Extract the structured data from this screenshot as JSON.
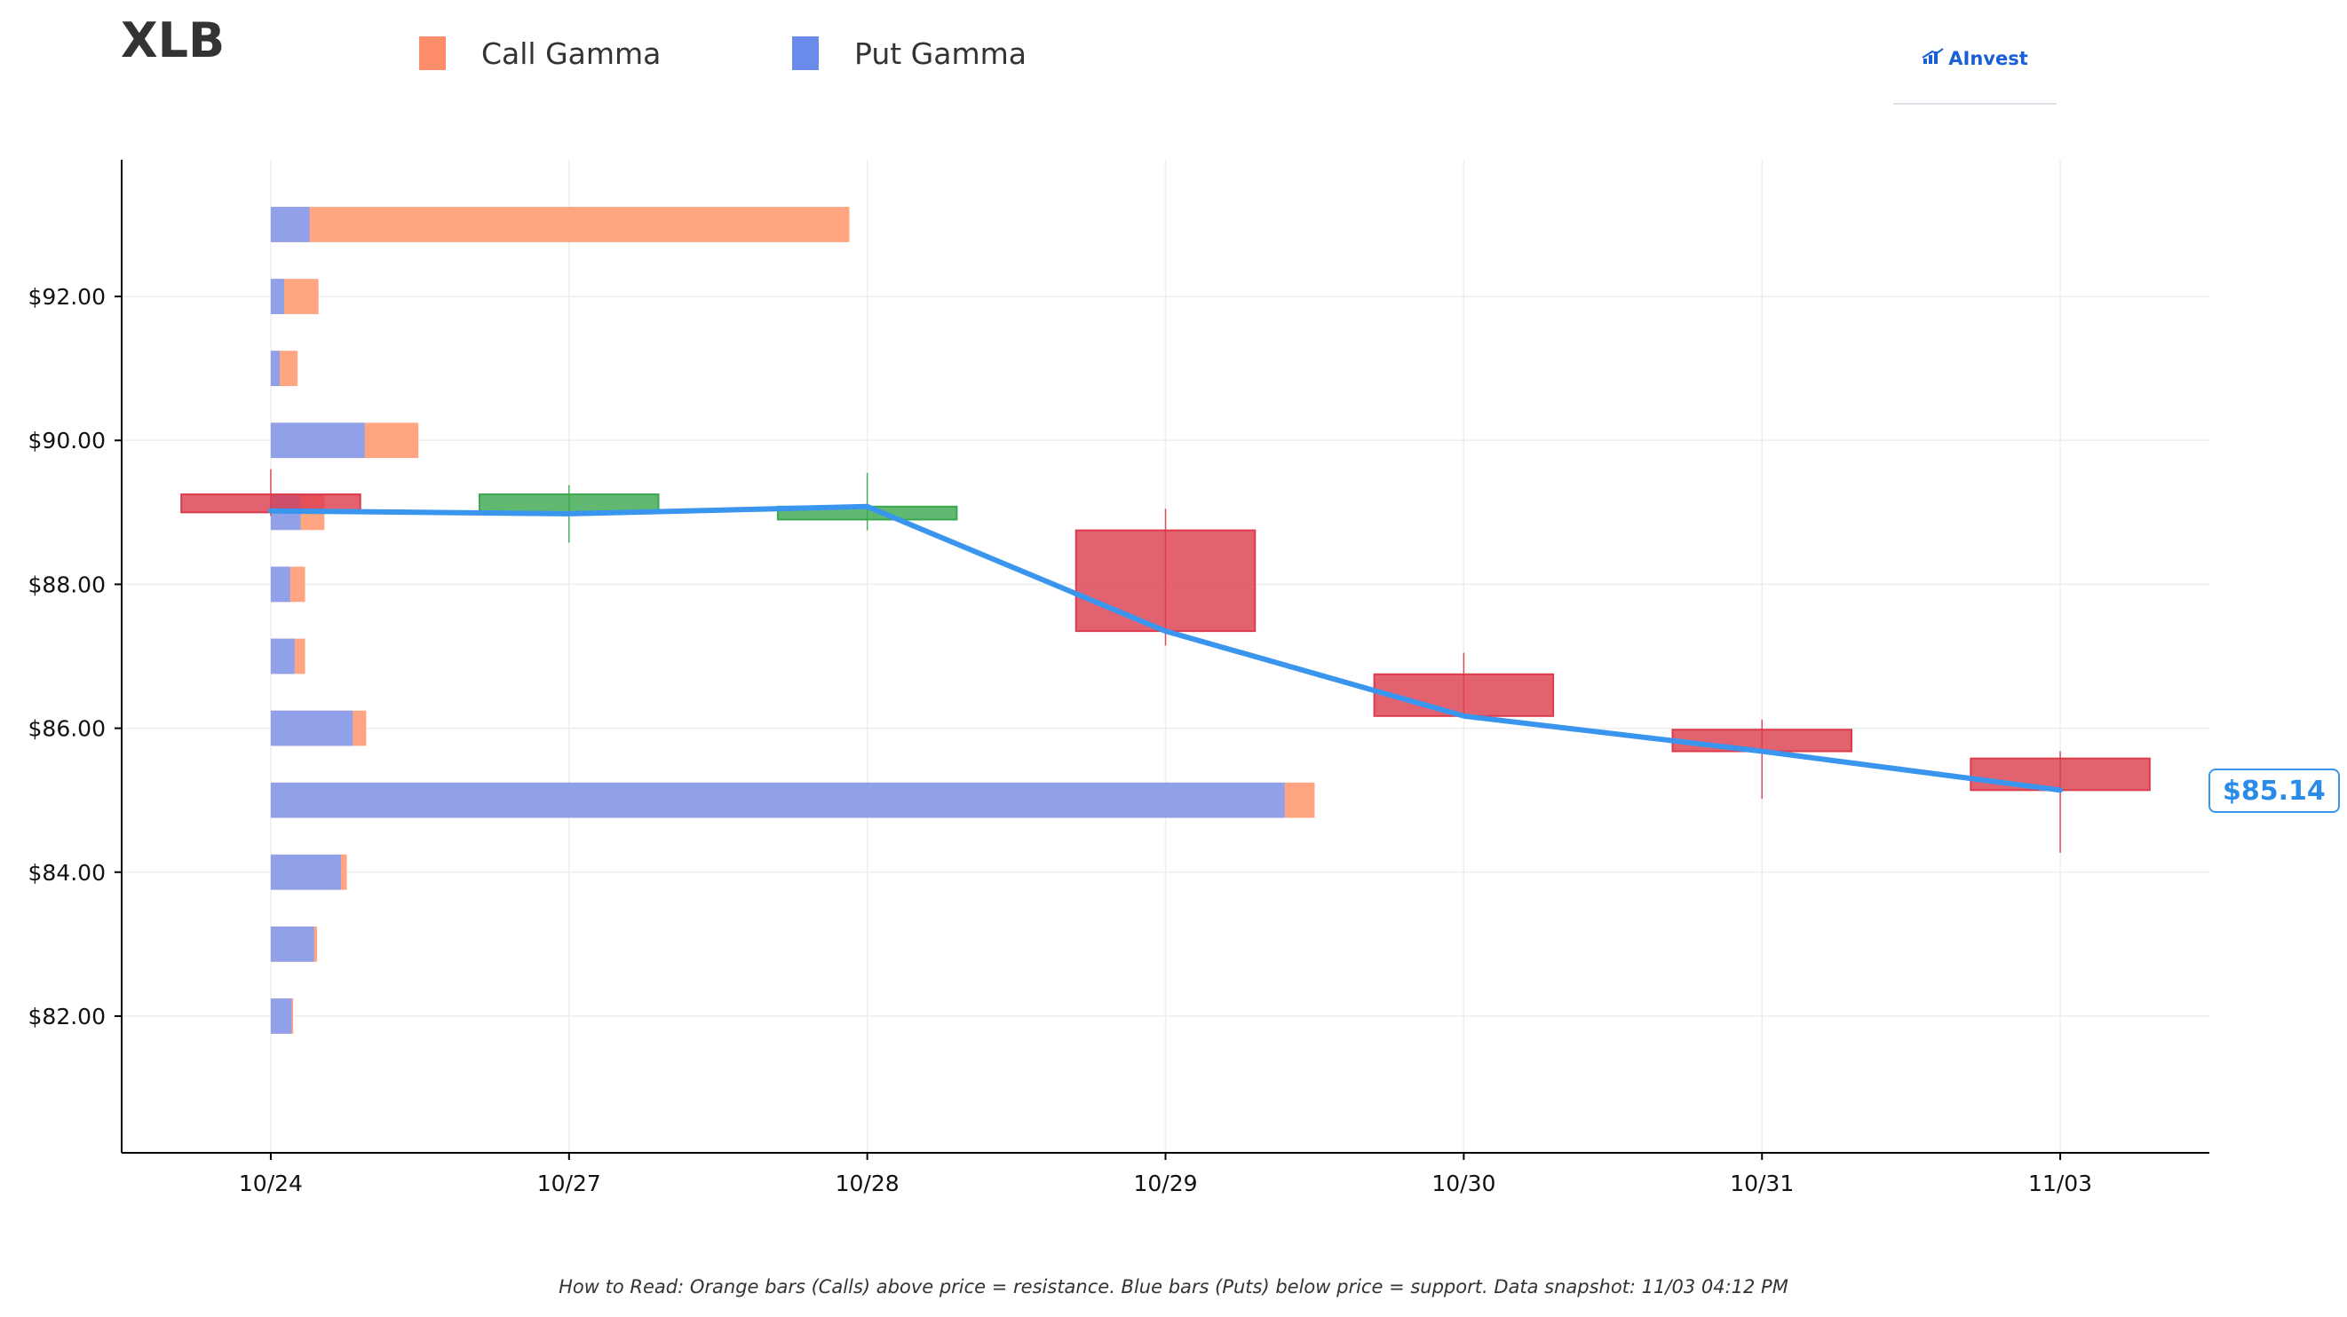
{
  "header": {
    "ticker": "XLB",
    "logo_text": "AInvest",
    "logo_icon": "bar-chart-arrow-icon"
  },
  "legend": [
    {
      "label": "Call Gamma",
      "color": "#ff8c69"
    },
    {
      "label": "Put Gamma",
      "color": "#6b8bea"
    }
  ],
  "price_badge": "$85.14",
  "footnote": "How to Read: Orange bars (Calls) above price = resistance. Blue bars (Puts) below price = support. Data snapshot: 11/03 04:12 PM",
  "colors": {
    "call": "#ffa07a",
    "put": "#8aa0ee",
    "up_candle": "#3aa84e",
    "down_candle": "#dc3b4c",
    "price_line": "#3a95ee"
  },
  "chart_data": {
    "type": "bar",
    "x_categories": [
      "10/24",
      "10/27",
      "10/28",
      "10/29",
      "10/30",
      "10/31",
      "11/03"
    ],
    "y_ticks": [
      "$82.00",
      "$84.00",
      "$86.00",
      "$88.00",
      "$90.00",
      "$92.00"
    ],
    "y_tick_values": [
      82,
      84,
      86,
      88,
      90,
      92
    ],
    "ylim": [
      80.1,
      93.9
    ],
    "xlim": [
      -0.5,
      6.5
    ],
    "grid": true,
    "gamma_bars": {
      "strikes": [
        93,
        92,
        91,
        90,
        89,
        88,
        87,
        86,
        85,
        84,
        83,
        82
      ],
      "series": [
        {
          "name": "Put Gamma",
          "values": [
            0.13,
            0.045,
            0.03,
            0.315,
            0.1,
            0.065,
            0.08,
            0.275,
            3.4,
            0.235,
            0.145,
            0.07
          ]
        },
        {
          "name": "Call Gamma",
          "values": [
            1.94,
            0.16,
            0.09,
            0.495,
            0.18,
            0.115,
            0.115,
            0.32,
            3.5,
            0.255,
            0.155,
            0.075
          ]
        }
      ]
    },
    "candles": [
      {
        "x": "10/24",
        "open": 89.25,
        "close": 89.0,
        "high": 89.6,
        "low": 88.95
      },
      {
        "x": "10/27",
        "open": 89.0,
        "close": 89.25,
        "high": 89.38,
        "low": 88.58
      },
      {
        "x": "10/28",
        "open": 88.9,
        "close": 89.08,
        "high": 89.55,
        "low": 88.75
      },
      {
        "x": "10/29",
        "open": 88.75,
        "close": 87.35,
        "high": 89.05,
        "low": 87.15
      },
      {
        "x": "10/30",
        "open": 86.75,
        "close": 86.17,
        "high": 87.05,
        "low": 86.15
      },
      {
        "x": "10/31",
        "open": 85.98,
        "close": 85.68,
        "high": 86.12,
        "low": 85.02
      },
      {
        "x": "11/03",
        "open": 85.58,
        "close": 85.14,
        "high": 85.68,
        "low": 84.27
      }
    ],
    "price_line": {
      "x": [
        "10/24",
        "10/27",
        "10/28",
        "10/29",
        "10/30",
        "10/31",
        "11/03"
      ],
      "values": [
        89.02,
        88.98,
        89.08,
        87.35,
        86.17,
        85.68,
        85.14
      ]
    },
    "last_price": 85.14
  }
}
